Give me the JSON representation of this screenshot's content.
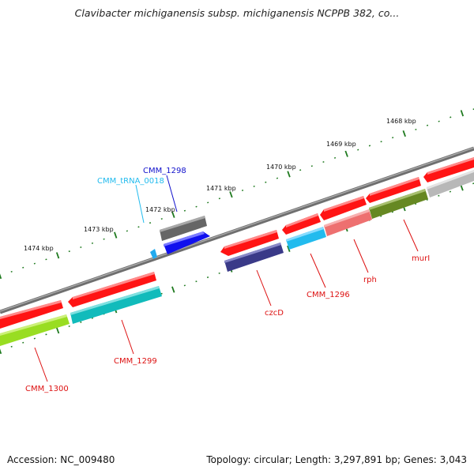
{
  "title": "Clavibacter michiganensis subsp. michiganensis NCPPB 382, co...",
  "footer": {
    "accession": "Accession: NC_009480",
    "summary": "Topology: circular; Length: 3,297,891 bp; Genes: 3,043"
  },
  "colors": {
    "backbone": "#7a7a7a",
    "tick": "#1f7a1f",
    "cds_forward": "#ff1010",
    "label_default": "#dd1111"
  },
  "scale": {
    "unit": "kbp",
    "labels": [
      "1468 kbp",
      "1469 kbp",
      "1470 kbp",
      "1471 kbp",
      "1472 kbp",
      "1473 kbp",
      "1474 kbp"
    ]
  },
  "genes": [
    {
      "name": "CMM_1300",
      "color": "#dd1111"
    },
    {
      "name": "CMM_1299",
      "color": "#dd1111"
    },
    {
      "name": "CMM_tRNA_0018",
      "color": "#22bbee"
    },
    {
      "name": "CMM_1298",
      "color": "#1111cc"
    },
    {
      "name": "czcD",
      "color": "#dd1111"
    },
    {
      "name": "CMM_1296",
      "color": "#dd1111"
    },
    {
      "name": "rph",
      "color": "#dd1111"
    },
    {
      "name": "murI",
      "color": "#dd1111"
    }
  ]
}
